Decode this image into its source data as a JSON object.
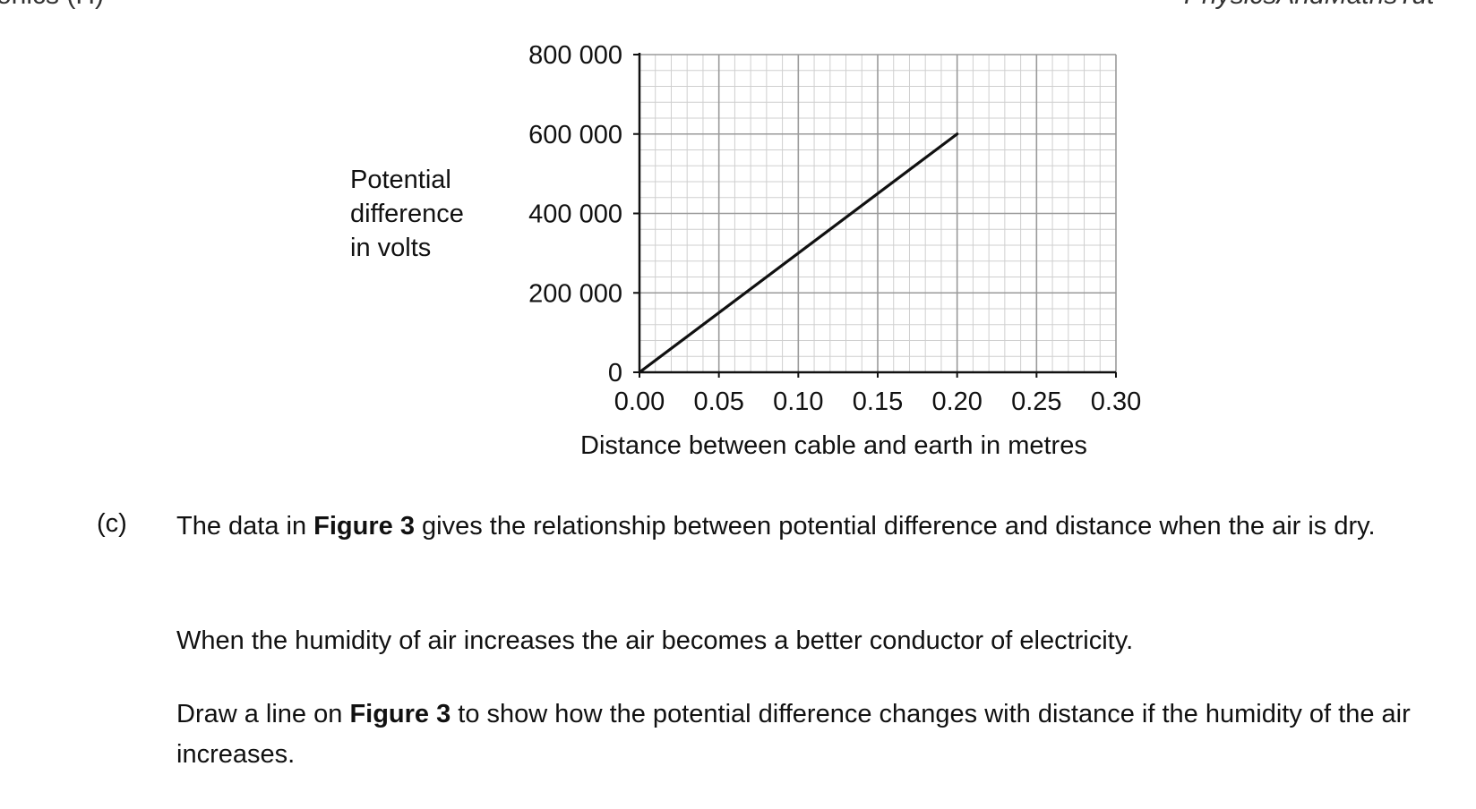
{
  "header": {
    "left_fragment": "onics (H)",
    "right_fragment": "PhysicsAndMathsTut"
  },
  "chart_data": {
    "type": "line",
    "xlabel": "Distance between cable and earth in metres",
    "ylabel_lines": [
      "Potential",
      "difference",
      "in volts"
    ],
    "xlim": [
      0,
      0.3
    ],
    "ylim": [
      0,
      800000
    ],
    "x_ticks": [
      "0.00",
      "0.05",
      "0.10",
      "0.15",
      "0.20",
      "0.25",
      "0.30"
    ],
    "y_ticks": [
      "0",
      "200 000",
      "400 000",
      "600 000",
      "800 000"
    ],
    "grid": true,
    "series": [
      {
        "x": [
          0.0,
          0.2
        ],
        "y": [
          0,
          600000
        ]
      }
    ]
  },
  "question": {
    "letter": "(c)",
    "p1_before": "The data in ",
    "figure_ref_1": "Figure 3",
    "p1_after": " gives the relationship between potential difference and distance when the air is dry.",
    "p2": "When the humidity of air increases the air becomes a better conductor of electricity.",
    "p3_before": "Draw a line on ",
    "figure_ref_2": "Figure 3",
    "p3_after": " to show how the potential difference changes with distance if the humidity of the air increases."
  }
}
